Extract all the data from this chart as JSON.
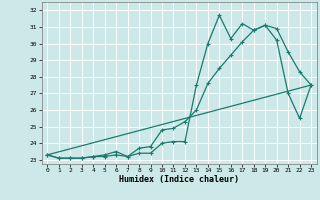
{
  "xlabel": "Humidex (Indice chaleur)",
  "background_color": "#cce8e8",
  "line_color": "#1a7a6e",
  "grid_color": "#ffffff",
  "xlim": [
    -0.5,
    23.5
  ],
  "ylim": [
    22.75,
    32.5
  ],
  "xticks": [
    0,
    1,
    2,
    3,
    4,
    5,
    6,
    7,
    8,
    9,
    10,
    11,
    12,
    13,
    14,
    15,
    16,
    17,
    18,
    19,
    20,
    21,
    22,
    23
  ],
  "yticks": [
    23,
    24,
    25,
    26,
    27,
    28,
    29,
    30,
    31,
    32
  ],
  "line1_x": [
    0,
    1,
    2,
    3,
    4,
    5,
    6,
    7,
    8,
    9,
    10,
    11,
    12,
    13,
    14,
    15,
    16,
    17,
    18,
    19,
    20,
    21,
    22,
    23
  ],
  "line1_y": [
    23.3,
    23.1,
    23.1,
    23.1,
    23.2,
    23.2,
    23.3,
    23.2,
    23.4,
    23.4,
    24.0,
    24.1,
    24.1,
    27.5,
    30.0,
    31.7,
    30.3,
    31.2,
    30.8,
    31.1,
    30.9,
    29.5,
    28.3,
    27.5
  ],
  "line2_x": [
    0,
    1,
    2,
    3,
    4,
    5,
    6,
    7,
    8,
    9,
    10,
    11,
    12,
    13,
    14,
    15,
    16,
    17,
    18,
    19,
    20,
    21,
    22,
    23
  ],
  "line2_y": [
    23.3,
    23.1,
    23.1,
    23.1,
    23.2,
    23.3,
    23.5,
    23.2,
    23.7,
    23.8,
    24.8,
    24.9,
    25.3,
    26.0,
    27.6,
    28.5,
    29.3,
    30.1,
    30.8,
    31.1,
    30.2,
    27.0,
    25.5,
    27.5
  ],
  "ref_line_x": [
    0,
    23
  ],
  "ref_line_y": [
    23.3,
    27.5
  ]
}
